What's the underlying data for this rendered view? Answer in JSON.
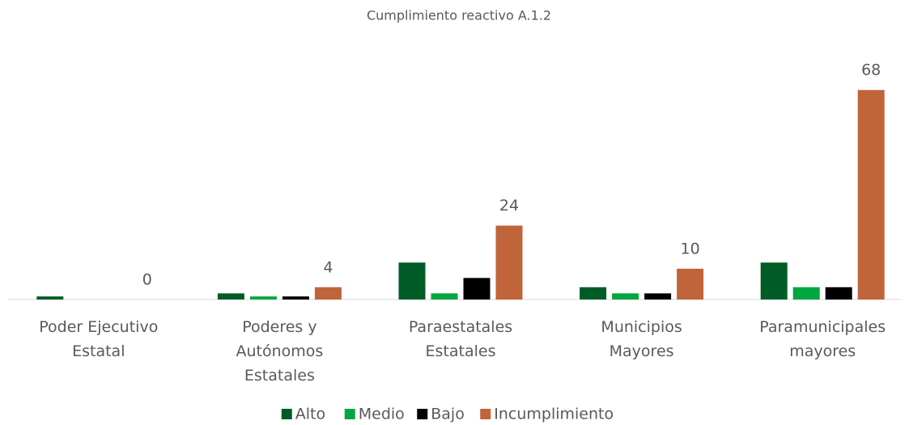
{
  "chart_data": {
    "type": "bar",
    "title": "Cumplimiento reactivo A.1.2",
    "categories": [
      "Poder Ejecutivo Estatal",
      "Poderes y Autónomos Estatales",
      "Paraestatales Estatales",
      "Municipios Mayores",
      "Paramunicipales mayores"
    ],
    "series": [
      {
        "name": "Alto",
        "color": "#005c27",
        "values": [
          1,
          2,
          12,
          4,
          12
        ]
      },
      {
        "name": "Medio",
        "color": "#00a63f",
        "values": [
          0,
          1,
          2,
          2,
          4
        ]
      },
      {
        "name": "Bajo",
        "color": "#000000",
        "values": [
          0,
          1,
          7,
          2,
          4
        ]
      },
      {
        "name": "Incumplimiento",
        "color": "#c0643a",
        "values": [
          0,
          4,
          24,
          10,
          68
        ],
        "data_labels": true
      }
    ],
    "ylim": [
      0,
      70
    ],
    "legend": "bottom"
  }
}
